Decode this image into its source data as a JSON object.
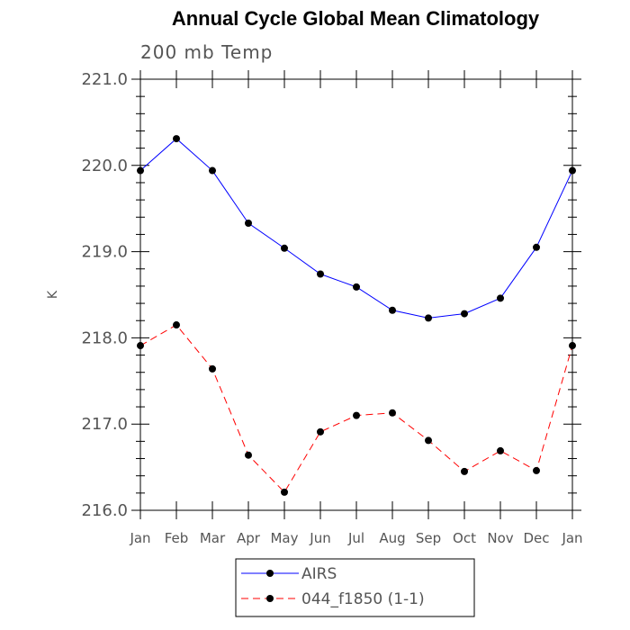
{
  "chart_data": {
    "type": "line",
    "title": "Annual Cycle Global Mean Climatology",
    "subtitle": "200 mb Temp",
    "xlabel": "",
    "ylabel": "K",
    "ylim": [
      216.0,
      221.0
    ],
    "yticks": [
      216.0,
      217.0,
      218.0,
      219.0,
      220.0,
      221.0
    ],
    "ytick_labels": [
      "216.0",
      "217.0",
      "218.0",
      "219.0",
      "220.0",
      "221.0"
    ],
    "categories": [
      "Jan",
      "Feb",
      "Mar",
      "Apr",
      "May",
      "Jun",
      "Jul",
      "Aug",
      "Sep",
      "Oct",
      "Nov",
      "Dec",
      "Jan"
    ],
    "series": [
      {
        "name": "AIRS",
        "color": "#0000ff",
        "dash": "solid",
        "values": [
          219.94,
          220.31,
          219.94,
          219.33,
          219.04,
          218.74,
          218.59,
          218.32,
          218.23,
          218.28,
          218.46,
          219.05,
          219.94
        ]
      },
      {
        "name": "044_f1850 (1-1)",
        "color": "#ff0000",
        "dash": "dashed",
        "values": [
          217.91,
          218.15,
          217.64,
          216.64,
          216.21,
          216.91,
          217.1,
          217.13,
          216.81,
          216.45,
          216.69,
          216.46,
          217.91
        ]
      }
    ],
    "grid": false,
    "legend_placement": "bottom-center"
  }
}
